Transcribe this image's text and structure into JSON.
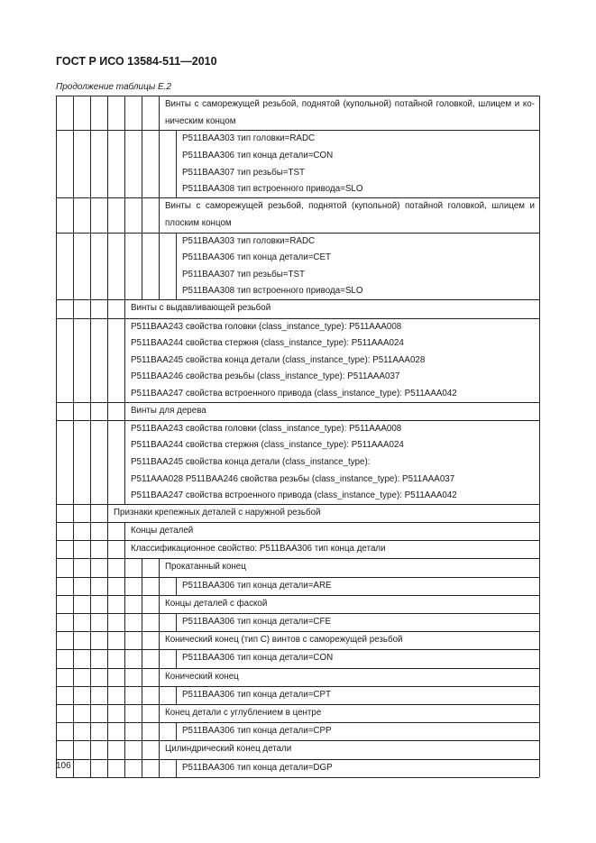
{
  "header": {
    "title": "ГОСТ Р ИСО 13584-511—2010"
  },
  "caption": "Продолжение таблицы Е.2",
  "page_number": "106",
  "table": {
    "rows": [
      {
        "level": 6,
        "paragraph": true,
        "lines": [
          "Винты с саморежущей резьбой, поднятой (купольной) потайной головкой, шлицем и ко-",
          "ническим концом"
        ]
      },
      {
        "level": 7,
        "lines": [
          "P511BAA303 тип головки=RADC",
          "P511BAA306 тип конца детали=CON",
          "P511BAA307 тип резьбы=TST",
          "P511BAA308 тип встроенного привода=SLO"
        ]
      },
      {
        "level": 6,
        "paragraph": true,
        "lines": [
          "Винты с саморежущей резьбой, поднятой (купольной) потайной головкой, шлицем и",
          "плоским концом"
        ]
      },
      {
        "level": 7,
        "lines": [
          "P511BAA303 тип головки=RADC",
          "P511BAA306 тип конца детали=CET",
          "P511BAA307 тип резьбы=TST",
          "P511BAA308 тип встроенного привода=SLO"
        ]
      },
      {
        "level": 4,
        "lines": [
          "Винты с выдавливающей резьбой"
        ]
      },
      {
        "level": 4,
        "lines": [
          "P511BAA243 свойства головки (class_instance_type): P511AAA008",
          "P511BAA244 свойства стержня (class_instance_type): P511AAA024",
          "P511BAA245 свойства конца детали (class_instance_type): P511AAA028",
          "P511BAA246 свойства резьбы (class_instance_type): P511AAA037",
          "P511BAA247 свойства встроенного привода (class_instance_type): P511AAA042"
        ]
      },
      {
        "level": 4,
        "lines": [
          "Винты для дерева"
        ]
      },
      {
        "level": 4,
        "lines": [
          "P511BAA243 свойства головки (class_instance_type): P511AAA008",
          "P511BAA244 свойства стержня (class_instance_type): P511AAA024",
          "P511BAA245 свойства конца детали (class_instance_type):",
          "P511AAA028 P511BAA246 свойства резьбы (class_instance_type): P511AAA037",
          "P511BAA247 свойства встроенного привода (class_instance_type): P511AAA042"
        ]
      },
      {
        "level": 3,
        "lines": [
          "Признаки крепежных деталей с наружной резьбой"
        ]
      },
      {
        "level": 4,
        "lines": [
          "Концы деталей"
        ]
      },
      {
        "level": 4,
        "lines": [
          "Классификационное свойство: P511BAA306 тип конца детали"
        ]
      },
      {
        "level": 6,
        "lines": [
          "Прокатанный конец"
        ]
      },
      {
        "level": 7,
        "lines": [
          "P511BAA306 тип конца детали=ARE"
        ]
      },
      {
        "level": 6,
        "lines": [
          "Концы деталей с фаской"
        ]
      },
      {
        "level": 7,
        "lines": [
          "P511BAA306 тип конца детали=CFE"
        ]
      },
      {
        "level": 6,
        "lines": [
          "Конический конец (тип С) винтов с саморежущей резьбой"
        ]
      },
      {
        "level": 7,
        "lines": [
          "P511BAA306 тип конца детали=CON"
        ]
      },
      {
        "level": 6,
        "lines": [
          "Конический конец"
        ]
      },
      {
        "level": 7,
        "lines": [
          "P511BAA306 тип конца детали=CPT"
        ]
      },
      {
        "level": 6,
        "lines": [
          "Конец детали с углублением в центре"
        ]
      },
      {
        "level": 7,
        "lines": [
          "P511BAA306 тип конца детали=CPP"
        ]
      },
      {
        "level": 6,
        "lines": [
          "Цилиндрический конец детали"
        ]
      },
      {
        "level": 7,
        "lines": [
          "P511BAA306 тип конца детали=DGP"
        ]
      }
    ]
  }
}
